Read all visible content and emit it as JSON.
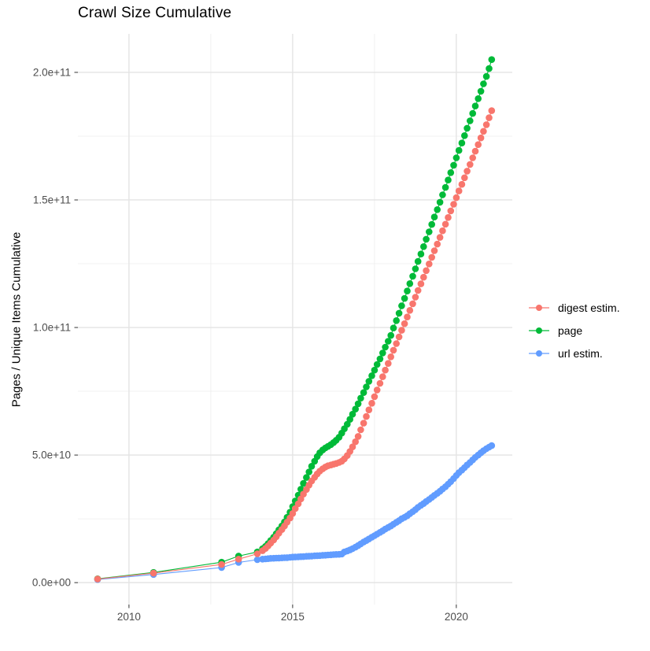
{
  "title": "Crawl Size Cumulative",
  "axes": {
    "y_title": "Pages / Unique Items Cumulative",
    "x_tick_labels": [
      "2010",
      "2015",
      "2020"
    ],
    "y_tick_labels": [
      "0.0e+00",
      "5.0e+10",
      "1.0e+11",
      "1.5e+11",
      "2.0e+11"
    ]
  },
  "legend": {
    "items": [
      {
        "label": "digest estim.",
        "color": "#F8766D",
        "key_icon": "line-with-dot"
      },
      {
        "label": "page",
        "color": "#00BA38",
        "key_icon": "line-with-dot"
      },
      {
        "label": "url estim.",
        "color": "#619CFF",
        "key_icon": "line-with-dot"
      }
    ]
  },
  "chart_data": {
    "type": "line",
    "title": "Crawl Size Cumulative",
    "xlabel": "",
    "ylabel": "Pages / Unique Items Cumulative",
    "y_unit": "billions (1e9); axis shows scientific notation",
    "xlim": [
      2008.44,
      2021.71
    ],
    "ylim_billions": [
      -8.6,
      215.1
    ],
    "x_ticks": [
      2010,
      2015,
      2020
    ],
    "x_minor_ticks": [
      2012.5,
      2017.5
    ],
    "y_ticks_billions": [
      0,
      50,
      100,
      150,
      200
    ],
    "y_minor_ticks_billions": [
      25,
      75,
      125,
      175
    ],
    "grid": "major and minor, light gray on white",
    "legend_position": "right",
    "marker": "filled circle r=4.3 with thin connecting line",
    "series": [
      {
        "name": "url estim.",
        "color": "#619CFF",
        "points": [
          [
            2009.04,
            1.2
          ],
          [
            2010.75,
            3.2
          ],
          [
            2012.83,
            5.9
          ],
          [
            2013.35,
            7.9
          ],
          [
            2013.92,
            9.0
          ],
          [
            2014.08,
            9.2
          ],
          [
            2014.17,
            9.3
          ],
          [
            2014.25,
            9.4
          ],
          [
            2014.33,
            9.5
          ],
          [
            2014.42,
            9.55
          ],
          [
            2014.5,
            9.6
          ],
          [
            2014.58,
            9.65
          ],
          [
            2014.67,
            9.7
          ],
          [
            2014.75,
            9.75
          ],
          [
            2014.83,
            9.8
          ],
          [
            2014.92,
            9.9
          ],
          [
            2015.0,
            10.0
          ],
          [
            2015.08,
            10.05
          ],
          [
            2015.17,
            10.1
          ],
          [
            2015.25,
            10.15
          ],
          [
            2015.33,
            10.2
          ],
          [
            2015.42,
            10.3
          ],
          [
            2015.5,
            10.35
          ],
          [
            2015.58,
            10.4
          ],
          [
            2015.67,
            10.5
          ],
          [
            2015.75,
            10.55
          ],
          [
            2015.83,
            10.6
          ],
          [
            2015.92,
            10.7
          ],
          [
            2016.0,
            10.75
          ],
          [
            2016.08,
            10.85
          ],
          [
            2016.17,
            10.9
          ],
          [
            2016.25,
            11.0
          ],
          [
            2016.33,
            11.05
          ],
          [
            2016.42,
            11.1
          ],
          [
            2016.5,
            11.2
          ],
          [
            2016.58,
            12.0
          ],
          [
            2016.67,
            12.4
          ],
          [
            2016.75,
            12.8
          ],
          [
            2016.83,
            13.3
          ],
          [
            2016.92,
            13.9
          ],
          [
            2017.0,
            14.5
          ],
          [
            2017.08,
            15.2
          ],
          [
            2017.17,
            15.9
          ],
          [
            2017.25,
            16.5
          ],
          [
            2017.33,
            17.1
          ],
          [
            2017.42,
            17.8
          ],
          [
            2017.5,
            18.4
          ],
          [
            2017.58,
            19.0
          ],
          [
            2017.67,
            19.7
          ],
          [
            2017.75,
            20.3
          ],
          [
            2017.83,
            21.0
          ],
          [
            2017.92,
            21.6
          ],
          [
            2018.0,
            22.2
          ],
          [
            2018.08,
            22.9
          ],
          [
            2018.17,
            23.6
          ],
          [
            2018.25,
            24.3
          ],
          [
            2018.33,
            25.0
          ],
          [
            2018.42,
            25.6
          ],
          [
            2018.5,
            26.2
          ],
          [
            2018.58,
            27.0
          ],
          [
            2018.67,
            27.8
          ],
          [
            2018.75,
            28.6
          ],
          [
            2018.83,
            29.5
          ],
          [
            2018.92,
            30.3
          ],
          [
            2019.0,
            31.0
          ],
          [
            2019.08,
            31.8
          ],
          [
            2019.17,
            32.6
          ],
          [
            2019.25,
            33.4
          ],
          [
            2019.33,
            34.2
          ],
          [
            2019.42,
            35.0
          ],
          [
            2019.5,
            35.8
          ],
          [
            2019.58,
            36.7
          ],
          [
            2019.67,
            37.6
          ],
          [
            2019.75,
            38.6
          ],
          [
            2019.83,
            39.6
          ],
          [
            2019.92,
            40.8
          ],
          [
            2020.0,
            42.0
          ],
          [
            2020.08,
            43.1
          ],
          [
            2020.17,
            44.1
          ],
          [
            2020.25,
            45.1
          ],
          [
            2020.33,
            46.1
          ],
          [
            2020.42,
            47.1
          ],
          [
            2020.5,
            48.1
          ],
          [
            2020.58,
            49.1
          ],
          [
            2020.67,
            50.0
          ],
          [
            2020.75,
            50.9
          ],
          [
            2020.83,
            51.7
          ],
          [
            2020.92,
            52.5
          ],
          [
            2021.0,
            53.1
          ],
          [
            2021.08,
            53.7
          ]
        ]
      },
      {
        "name": "page",
        "color": "#00BA38",
        "points": [
          [
            2009.04,
            1.5
          ],
          [
            2010.75,
            4.0
          ],
          [
            2012.83,
            8.0
          ],
          [
            2013.35,
            10.4
          ],
          [
            2013.92,
            12.0
          ],
          [
            2014.08,
            13.3
          ],
          [
            2014.17,
            14.2
          ],
          [
            2014.25,
            15.3
          ],
          [
            2014.33,
            16.5
          ],
          [
            2014.42,
            17.8
          ],
          [
            2014.5,
            19.2
          ],
          [
            2014.58,
            20.7
          ],
          [
            2014.67,
            22.2
          ],
          [
            2014.75,
            23.8
          ],
          [
            2014.83,
            25.6
          ],
          [
            2014.92,
            27.6
          ],
          [
            2015.0,
            29.8
          ],
          [
            2015.08,
            32.0
          ],
          [
            2015.17,
            34.3
          ],
          [
            2015.25,
            36.6
          ],
          [
            2015.33,
            38.9
          ],
          [
            2015.42,
            41.2
          ],
          [
            2015.5,
            43.4
          ],
          [
            2015.58,
            45.6
          ],
          [
            2015.67,
            47.6
          ],
          [
            2015.75,
            49.4
          ],
          [
            2015.83,
            50.9
          ],
          [
            2015.92,
            52.0
          ],
          [
            2016.0,
            52.8
          ],
          [
            2016.08,
            53.4
          ],
          [
            2016.17,
            54.1
          ],
          [
            2016.25,
            54.9
          ],
          [
            2016.33,
            55.8
          ],
          [
            2016.42,
            57.0
          ],
          [
            2016.5,
            58.6
          ],
          [
            2016.58,
            60.3
          ],
          [
            2016.67,
            62.1
          ],
          [
            2016.75,
            64.0
          ],
          [
            2016.83,
            66.0
          ],
          [
            2016.92,
            68.0
          ],
          [
            2017.0,
            70.1
          ],
          [
            2017.08,
            72.3
          ],
          [
            2017.17,
            74.5
          ],
          [
            2017.25,
            76.7
          ],
          [
            2017.33,
            78.9
          ],
          [
            2017.42,
            81.1
          ],
          [
            2017.5,
            83.3
          ],
          [
            2017.58,
            85.5
          ],
          [
            2017.67,
            87.7
          ],
          [
            2017.75,
            90.0
          ],
          [
            2017.83,
            92.3
          ],
          [
            2017.92,
            94.6
          ],
          [
            2018.0,
            96.9
          ],
          [
            2018.08,
            99.8
          ],
          [
            2018.17,
            102.7
          ],
          [
            2018.25,
            105.6
          ],
          [
            2018.33,
            108.5
          ],
          [
            2018.42,
            111.4
          ],
          [
            2018.5,
            114.3
          ],
          [
            2018.58,
            117.2
          ],
          [
            2018.67,
            120.1
          ],
          [
            2018.75,
            123.0
          ],
          [
            2018.83,
            125.9
          ],
          [
            2018.92,
            128.8
          ],
          [
            2019.0,
            131.7
          ],
          [
            2019.08,
            134.6
          ],
          [
            2019.17,
            137.5
          ],
          [
            2019.25,
            140.4
          ],
          [
            2019.33,
            143.3
          ],
          [
            2019.42,
            146.2
          ],
          [
            2019.5,
            149.1
          ],
          [
            2019.58,
            152.0
          ],
          [
            2019.67,
            154.9
          ],
          [
            2019.75,
            157.8
          ],
          [
            2019.83,
            160.7
          ],
          [
            2019.92,
            163.6
          ],
          [
            2020.0,
            166.5
          ],
          [
            2020.08,
            169.4
          ],
          [
            2020.17,
            172.3
          ],
          [
            2020.25,
            175.2
          ],
          [
            2020.33,
            178.1
          ],
          [
            2020.42,
            181.0
          ],
          [
            2020.5,
            183.9
          ],
          [
            2020.58,
            186.8
          ],
          [
            2020.67,
            189.7
          ],
          [
            2020.75,
            192.6
          ],
          [
            2020.83,
            195.5
          ],
          [
            2020.92,
            198.4
          ],
          [
            2021.0,
            201.5
          ],
          [
            2021.08,
            205.0
          ]
        ]
      },
      {
        "name": "digest estim.",
        "color": "#F8766D",
        "points": [
          [
            2009.04,
            1.4
          ],
          [
            2010.75,
            3.7
          ],
          [
            2012.83,
            7.1
          ],
          [
            2013.35,
            9.2
          ],
          [
            2013.92,
            11.3
          ],
          [
            2014.08,
            12.5
          ],
          [
            2014.17,
            13.4
          ],
          [
            2014.25,
            14.4
          ],
          [
            2014.33,
            15.5
          ],
          [
            2014.42,
            16.7
          ],
          [
            2014.5,
            18.0
          ],
          [
            2014.58,
            19.4
          ],
          [
            2014.67,
            20.8
          ],
          [
            2014.75,
            22.2
          ],
          [
            2014.83,
            23.7
          ],
          [
            2014.92,
            25.3
          ],
          [
            2015.0,
            27.1
          ],
          [
            2015.08,
            29.0
          ],
          [
            2015.17,
            30.9
          ],
          [
            2015.25,
            32.8
          ],
          [
            2015.33,
            34.7
          ],
          [
            2015.42,
            36.5
          ],
          [
            2015.5,
            38.2
          ],
          [
            2015.58,
            39.8
          ],
          [
            2015.67,
            41.3
          ],
          [
            2015.75,
            42.6
          ],
          [
            2015.83,
            43.7
          ],
          [
            2015.92,
            44.6
          ],
          [
            2016.0,
            45.3
          ],
          [
            2016.08,
            45.8
          ],
          [
            2016.17,
            46.1
          ],
          [
            2016.25,
            46.4
          ],
          [
            2016.33,
            46.7
          ],
          [
            2016.42,
            47.1
          ],
          [
            2016.5,
            47.6
          ],
          [
            2016.58,
            48.5
          ],
          [
            2016.67,
            49.8
          ],
          [
            2016.75,
            51.4
          ],
          [
            2016.83,
            53.2
          ],
          [
            2016.92,
            55.2
          ],
          [
            2017.0,
            57.3
          ],
          [
            2017.08,
            59.9
          ],
          [
            2017.17,
            62.5
          ],
          [
            2017.25,
            65.1
          ],
          [
            2017.33,
            67.7
          ],
          [
            2017.42,
            70.3
          ],
          [
            2017.5,
            72.9
          ],
          [
            2017.58,
            75.5
          ],
          [
            2017.67,
            78.1
          ],
          [
            2017.75,
            80.7
          ],
          [
            2017.83,
            83.3
          ],
          [
            2017.92,
            85.9
          ],
          [
            2018.0,
            88.5
          ],
          [
            2018.08,
            91.1
          ],
          [
            2018.17,
            93.7
          ],
          [
            2018.25,
            96.3
          ],
          [
            2018.33,
            98.9
          ],
          [
            2018.42,
            101.5
          ],
          [
            2018.5,
            104.1
          ],
          [
            2018.58,
            106.7
          ],
          [
            2018.67,
            109.3
          ],
          [
            2018.75,
            111.9
          ],
          [
            2018.83,
            114.5
          ],
          [
            2018.92,
            117.1
          ],
          [
            2019.0,
            119.7
          ],
          [
            2019.08,
            122.3
          ],
          [
            2019.17,
            124.9
          ],
          [
            2019.25,
            127.5
          ],
          [
            2019.33,
            130.1
          ],
          [
            2019.42,
            132.7
          ],
          [
            2019.5,
            135.3
          ],
          [
            2019.58,
            137.9
          ],
          [
            2019.67,
            140.5
          ],
          [
            2019.75,
            143.1
          ],
          [
            2019.83,
            145.7
          ],
          [
            2019.92,
            148.3
          ],
          [
            2020.0,
            150.9
          ],
          [
            2020.08,
            153.5
          ],
          [
            2020.17,
            156.1
          ],
          [
            2020.25,
            158.7
          ],
          [
            2020.33,
            161.3
          ],
          [
            2020.42,
            163.9
          ],
          [
            2020.5,
            166.5
          ],
          [
            2020.58,
            169.1
          ],
          [
            2020.67,
            171.7
          ],
          [
            2020.75,
            174.3
          ],
          [
            2020.83,
            176.9
          ],
          [
            2020.92,
            179.5
          ],
          [
            2021.0,
            182.2
          ],
          [
            2021.08,
            185.0
          ]
        ]
      }
    ]
  },
  "style": {
    "grid_major_color": "#E4E4E4",
    "grid_minor_color": "#F0F0F0",
    "tick_mark_color": "#333333",
    "tick_label_color": "#4d4d4d",
    "background": "#FFFFFF"
  }
}
